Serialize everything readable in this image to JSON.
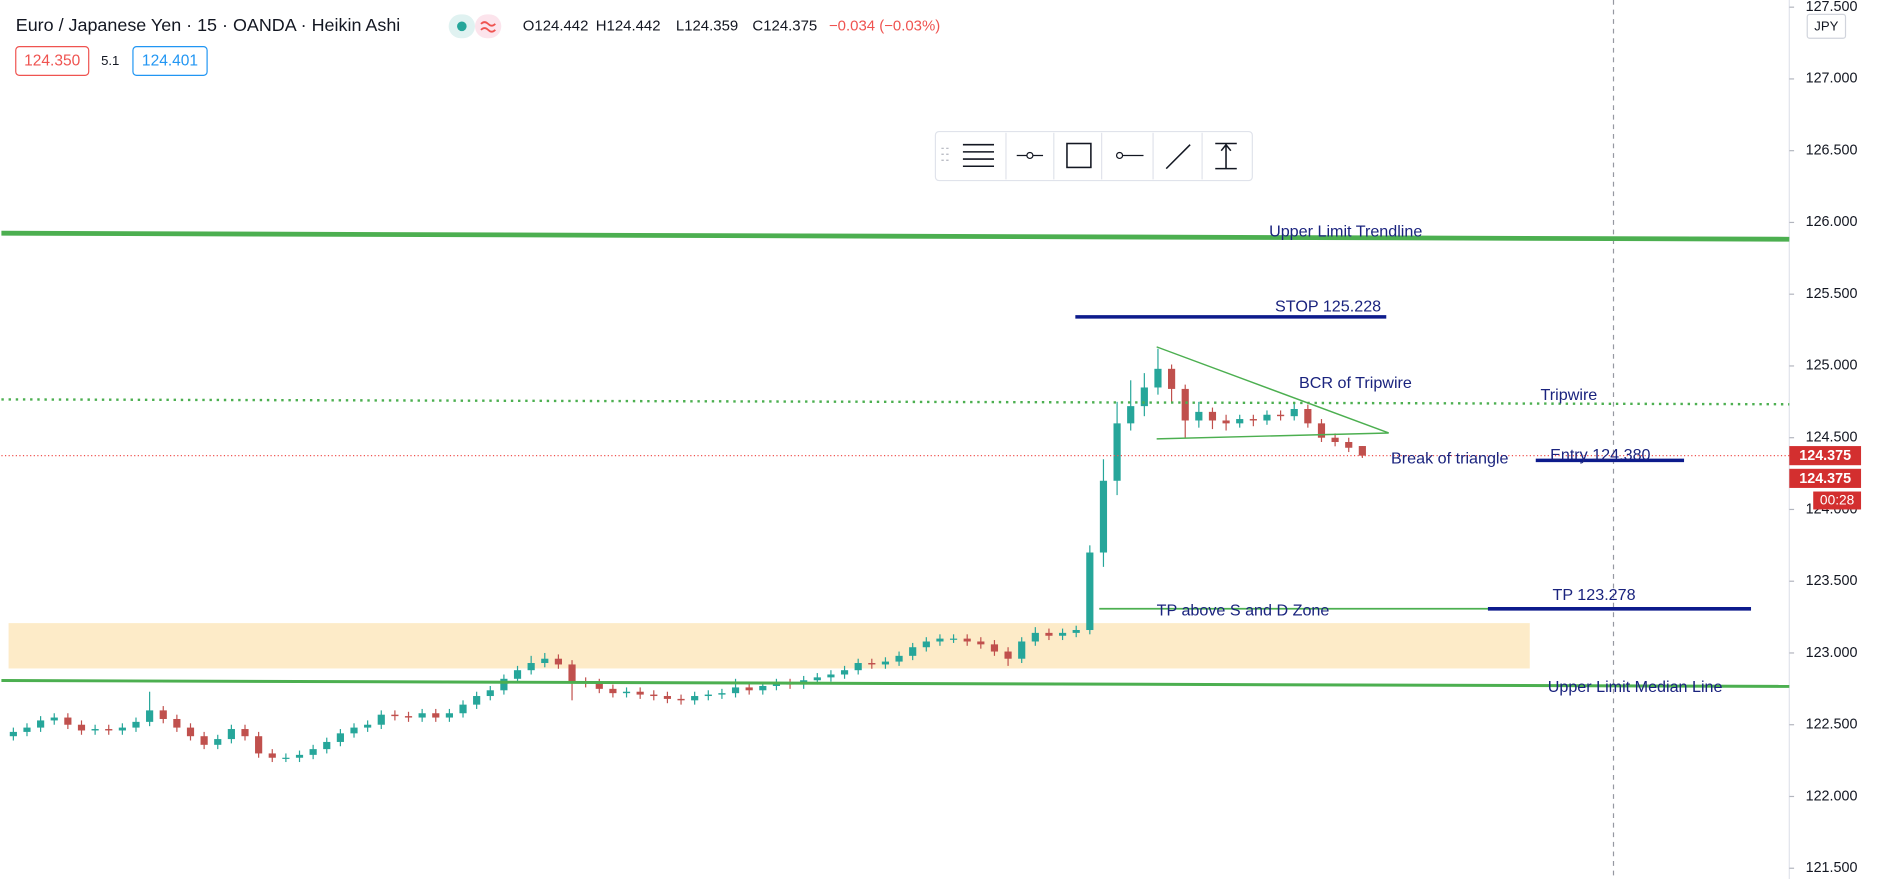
{
  "header": {
    "title": "Euro / Japanese Yen · 15 · OANDA · Heikin Ashi",
    "ohlc": [
      "O124.442",
      "H124.442",
      "L124.359",
      "C124.375",
      "−0.034 (−0.03%)"
    ],
    "sell": "124.350",
    "spread": "5.1",
    "buy": "124.401",
    "currency": "JPY"
  },
  "chart_data": {
    "type": "candlestick",
    "up_color": "#26a69a",
    "down_color": "#c0504d",
    "open": [
      122.42,
      122.45,
      122.48,
      122.53,
      122.55,
      122.5,
      122.46,
      122.47,
      122.46,
      122.48,
      122.52,
      122.6,
      122.54,
      122.48,
      122.42,
      122.36,
      122.4,
      122.47,
      122.42,
      122.3,
      122.27,
      122.27,
      122.29,
      122.33,
      122.38,
      122.44,
      122.48,
      122.5,
      122.57,
      122.56,
      122.55,
      122.58,
      122.55,
      122.58,
      122.64,
      122.7,
      122.74,
      122.82,
      122.88,
      122.93,
      122.96,
      122.92,
      122.8,
      122.79,
      122.75,
      122.72,
      122.73,
      122.71,
      122.7,
      122.68,
      122.67,
      122.7,
      122.71,
      122.72,
      122.76,
      122.74,
      122.77,
      122.79,
      122.78,
      122.81,
      122.83,
      122.85,
      122.88,
      122.93,
      122.92,
      122.94,
      122.98,
      123.04,
      123.08,
      123.1,
      123.1,
      123.08,
      123.06,
      123.01,
      122.96,
      123.08,
      123.14,
      123.12,
      123.14,
      123.16,
      123.7,
      124.2,
      124.6,
      124.72,
      124.85,
      124.98,
      124.84,
      124.62,
      124.68,
      124.62,
      124.6,
      124.63,
      124.62,
      124.66,
      124.65,
      124.7,
      124.6,
      124.5,
      124.47,
      124.442
    ],
    "high": [
      122.48,
      122.51,
      122.56,
      122.58,
      122.58,
      122.53,
      122.5,
      122.5,
      122.51,
      122.55,
      122.73,
      122.63,
      122.57,
      122.51,
      122.45,
      122.43,
      122.5,
      122.5,
      122.45,
      122.33,
      122.3,
      122.32,
      122.36,
      122.41,
      122.47,
      122.51,
      122.53,
      122.6,
      122.6,
      122.59,
      122.61,
      122.61,
      122.61,
      122.67,
      122.73,
      122.77,
      122.85,
      122.91,
      122.98,
      123.0,
      122.99,
      122.95,
      122.83,
      122.82,
      122.78,
      122.76,
      122.76,
      122.74,
      122.73,
      122.71,
      122.73,
      122.74,
      122.75,
      122.82,
      122.79,
      122.8,
      122.82,
      122.82,
      122.84,
      122.86,
      122.88,
      122.91,
      122.96,
      122.96,
      122.97,
      123.01,
      123.07,
      123.11,
      123.13,
      123.13,
      123.13,
      123.11,
      123.09,
      123.04,
      123.11,
      123.18,
      123.17,
      123.17,
      123.19,
      123.75,
      124.35,
      124.75,
      124.9,
      124.95,
      125.12,
      125.01,
      124.87,
      124.75,
      124.71,
      124.66,
      124.66,
      124.66,
      124.69,
      124.69,
      124.75,
      124.73,
      124.63,
      124.53,
      124.5,
      124.442
    ],
    "low": [
      122.39,
      122.42,
      122.45,
      122.5,
      122.47,
      122.43,
      122.43,
      122.43,
      122.43,
      122.45,
      122.49,
      122.51,
      122.45,
      122.39,
      122.33,
      122.33,
      122.37,
      122.39,
      122.27,
      122.24,
      122.24,
      122.24,
      122.26,
      122.3,
      122.35,
      122.41,
      122.45,
      122.47,
      122.53,
      122.52,
      122.52,
      122.52,
      122.52,
      122.55,
      122.61,
      122.67,
      122.71,
      122.79,
      122.85,
      122.9,
      122.89,
      122.67,
      122.76,
      122.72,
      122.69,
      122.69,
      122.68,
      122.67,
      122.65,
      122.64,
      122.64,
      122.67,
      122.68,
      122.69,
      122.71,
      122.71,
      122.74,
      122.75,
      122.75,
      122.78,
      122.8,
      122.82,
      122.85,
      122.89,
      122.89,
      122.91,
      122.95,
      123.01,
      123.05,
      123.07,
      123.05,
      123.03,
      122.98,
      122.91,
      122.93,
      123.05,
      123.09,
      123.09,
      123.11,
      123.13,
      123.6,
      124.1,
      124.55,
      124.65,
      124.8,
      124.75,
      124.5,
      124.57,
      124.56,
      124.55,
      124.57,
      124.58,
      124.59,
      124.62,
      124.62,
      124.57,
      124.47,
      124.44,
      124.4,
      124.359
    ],
    "close": [
      122.45,
      122.48,
      122.53,
      122.55,
      122.5,
      122.46,
      122.47,
      122.46,
      122.48,
      122.52,
      122.6,
      122.54,
      122.48,
      122.42,
      122.36,
      122.4,
      122.47,
      122.42,
      122.3,
      122.27,
      122.27,
      122.29,
      122.33,
      122.38,
      122.44,
      122.48,
      122.5,
      122.57,
      122.56,
      122.55,
      122.58,
      122.55,
      122.58,
      122.64,
      122.7,
      122.74,
      122.82,
      122.88,
      122.93,
      122.96,
      122.92,
      122.8,
      122.79,
      122.75,
      122.72,
      122.73,
      122.71,
      122.7,
      122.68,
      122.67,
      122.7,
      122.71,
      122.72,
      122.76,
      122.74,
      122.77,
      122.79,
      122.78,
      122.81,
      122.83,
      122.85,
      122.88,
      122.93,
      122.92,
      122.94,
      122.98,
      123.04,
      123.08,
      123.1,
      123.1,
      123.08,
      123.06,
      123.01,
      122.96,
      123.08,
      123.14,
      123.12,
      123.14,
      123.16,
      123.7,
      124.2,
      124.6,
      124.72,
      124.85,
      124.98,
      124.84,
      124.62,
      124.68,
      124.62,
      124.6,
      124.63,
      124.62,
      124.66,
      124.65,
      124.7,
      124.6,
      124.5,
      124.47,
      124.43,
      124.375
    ],
    "ylim": [
      121.425,
      127.55
    ],
    "yticks": [
      {
        "value": 121.5,
        "label": "121.500"
      },
      {
        "value": 122,
        "label": "122.000"
      },
      {
        "value": 122.5,
        "label": "122.500"
      },
      {
        "value": 123,
        "label": "123.000"
      },
      {
        "value": 123.5,
        "label": "123.500"
      },
      {
        "value": 124,
        "label": "124.000"
      },
      {
        "value": 124.5,
        "label": "124.500"
      },
      {
        "value": 125,
        "label": "125.000"
      },
      {
        "value": 125.5,
        "label": "125.500"
      },
      {
        "value": 126,
        "label": "126.000"
      },
      {
        "value": 126.5,
        "label": "126.500"
      },
      {
        "value": 127,
        "label": "127.000"
      },
      {
        "value": 127.5,
        "label": "127.500"
      }
    ],
    "grid": false,
    "last_price": {
      "value": 124.375,
      "label": "124.375"
    },
    "countdown": "00:28",
    "zone": {
      "color": "#fdebc8",
      "values": [
        123.208,
        122.892
      ]
    },
    "lines": [
      {
        "label": "Upper Limit Trendline",
        "color": "#4caf50",
        "values": [
          125.925,
          125.883
        ]
      },
      {
        "label": "Upper Limit Median Line",
        "color": "#4caf50",
        "values": [
          122.808,
          122.767
        ]
      },
      {
        "label": "Tripwire",
        "color": "#4caf50",
        "style": "dotted",
        "values": [
          124.767,
          124.733
        ]
      },
      {
        "color": "#4caf50",
        "values": [
          125.133,
          124.533
        ]
      },
      {
        "color": "#4caf50",
        "values": [
          124.492,
          124.533
        ]
      },
      {
        "label": "TP above S and D Zone",
        "color": "#4caf50",
        "values": [
          123.308,
          123.308
        ]
      },
      {
        "label": "STOP 125.228",
        "color": "#0d1b8c",
        "values": [
          125.342,
          125.342
        ]
      },
      {
        "label": "Entry 124.380",
        "color": "#0d1b8c",
        "values": [
          124.342,
          124.342
        ]
      },
      {
        "label": "TP 123.278",
        "color": "#0d1b8c",
        "values": [
          123.308,
          123.308
        ]
      }
    ],
    "notes": [
      "BCR of Tripwire",
      "Break of triangle"
    ]
  }
}
